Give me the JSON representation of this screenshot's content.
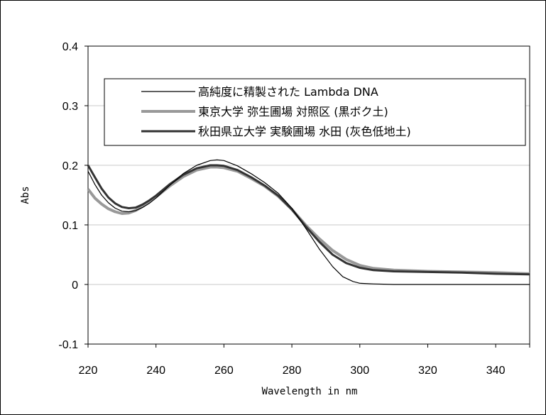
{
  "chart_data": {
    "type": "line",
    "title": "",
    "xlabel": "Wavelength in nm",
    "ylabel": "Abs",
    "xlim": [
      220,
      350
    ],
    "ylim": [
      -0.1,
      0.4
    ],
    "x_ticks": [
      "220",
      "240",
      "260",
      "280",
      "300",
      "320",
      "340"
    ],
    "y_ticks": [
      "0.4",
      "0.3",
      "0.2",
      "0.1",
      "0",
      "-0.1"
    ],
    "grid": "horizontal",
    "legend_position": "top",
    "series": [
      {
        "name": "高純度に精製された Lambda DNA",
        "color": "#000000",
        "points": [
          [
            220,
            0.19
          ],
          [
            222,
            0.168
          ],
          [
            224,
            0.15
          ],
          [
            226,
            0.137
          ],
          [
            228,
            0.128
          ],
          [
            230,
            0.123
          ],
          [
            232,
            0.122
          ],
          [
            234,
            0.124
          ],
          [
            236,
            0.129
          ],
          [
            238,
            0.136
          ],
          [
            240,
            0.145
          ],
          [
            244,
            0.166
          ],
          [
            248,
            0.186
          ],
          [
            252,
            0.2
          ],
          [
            256,
            0.208
          ],
          [
            258,
            0.209
          ],
          [
            260,
            0.208
          ],
          [
            264,
            0.199
          ],
          [
            268,
            0.186
          ],
          [
            272,
            0.171
          ],
          [
            276,
            0.153
          ],
          [
            280,
            0.128
          ],
          [
            284,
            0.095
          ],
          [
            288,
            0.06
          ],
          [
            292,
            0.03
          ],
          [
            295,
            0.013
          ],
          [
            298,
            0.005
          ],
          [
            300,
            0.002
          ],
          [
            304,
            0.001
          ],
          [
            310,
            0.0
          ],
          [
            330,
            0.0
          ],
          [
            350,
            0.0
          ]
        ]
      },
      {
        "name": "東京大学 弥生圃場 対照区 (黒ボク土)",
        "color": "#999999",
        "points": [
          [
            220,
            0.16
          ],
          [
            222,
            0.145
          ],
          [
            224,
            0.135
          ],
          [
            226,
            0.127
          ],
          [
            228,
            0.122
          ],
          [
            230,
            0.119
          ],
          [
            232,
            0.12
          ],
          [
            234,
            0.124
          ],
          [
            236,
            0.131
          ],
          [
            238,
            0.139
          ],
          [
            240,
            0.147
          ],
          [
            244,
            0.165
          ],
          [
            248,
            0.181
          ],
          [
            252,
            0.192
          ],
          [
            256,
            0.197
          ],
          [
            258,
            0.197
          ],
          [
            260,
            0.196
          ],
          [
            264,
            0.19
          ],
          [
            268,
            0.178
          ],
          [
            272,
            0.165
          ],
          [
            276,
            0.148
          ],
          [
            280,
            0.126
          ],
          [
            284,
            0.1
          ],
          [
            288,
            0.077
          ],
          [
            292,
            0.057
          ],
          [
            296,
            0.042
          ],
          [
            300,
            0.032
          ],
          [
            304,
            0.027
          ],
          [
            310,
            0.024
          ],
          [
            320,
            0.022
          ],
          [
            330,
            0.021
          ],
          [
            340,
            0.02
          ],
          [
            350,
            0.018
          ]
        ]
      },
      {
        "name": "秋田県立大学 実験圃場 水田 (灰色低地土)",
        "color": "#333333",
        "points": [
          [
            220,
            0.2
          ],
          [
            222,
            0.18
          ],
          [
            224,
            0.161
          ],
          [
            226,
            0.146
          ],
          [
            228,
            0.136
          ],
          [
            230,
            0.13
          ],
          [
            232,
            0.128
          ],
          [
            234,
            0.129
          ],
          [
            236,
            0.134
          ],
          [
            238,
            0.141
          ],
          [
            240,
            0.149
          ],
          [
            244,
            0.168
          ],
          [
            248,
            0.184
          ],
          [
            252,
            0.195
          ],
          [
            256,
            0.2
          ],
          [
            258,
            0.2
          ],
          [
            260,
            0.199
          ],
          [
            264,
            0.192
          ],
          [
            268,
            0.18
          ],
          [
            272,
            0.166
          ],
          [
            276,
            0.149
          ],
          [
            280,
            0.126
          ],
          [
            284,
            0.098
          ],
          [
            288,
            0.072
          ],
          [
            292,
            0.05
          ],
          [
            296,
            0.036
          ],
          [
            300,
            0.028
          ],
          [
            304,
            0.024
          ],
          [
            310,
            0.022
          ],
          [
            320,
            0.021
          ],
          [
            330,
            0.02
          ],
          [
            340,
            0.018
          ],
          [
            350,
            0.017
          ]
        ]
      }
    ]
  }
}
